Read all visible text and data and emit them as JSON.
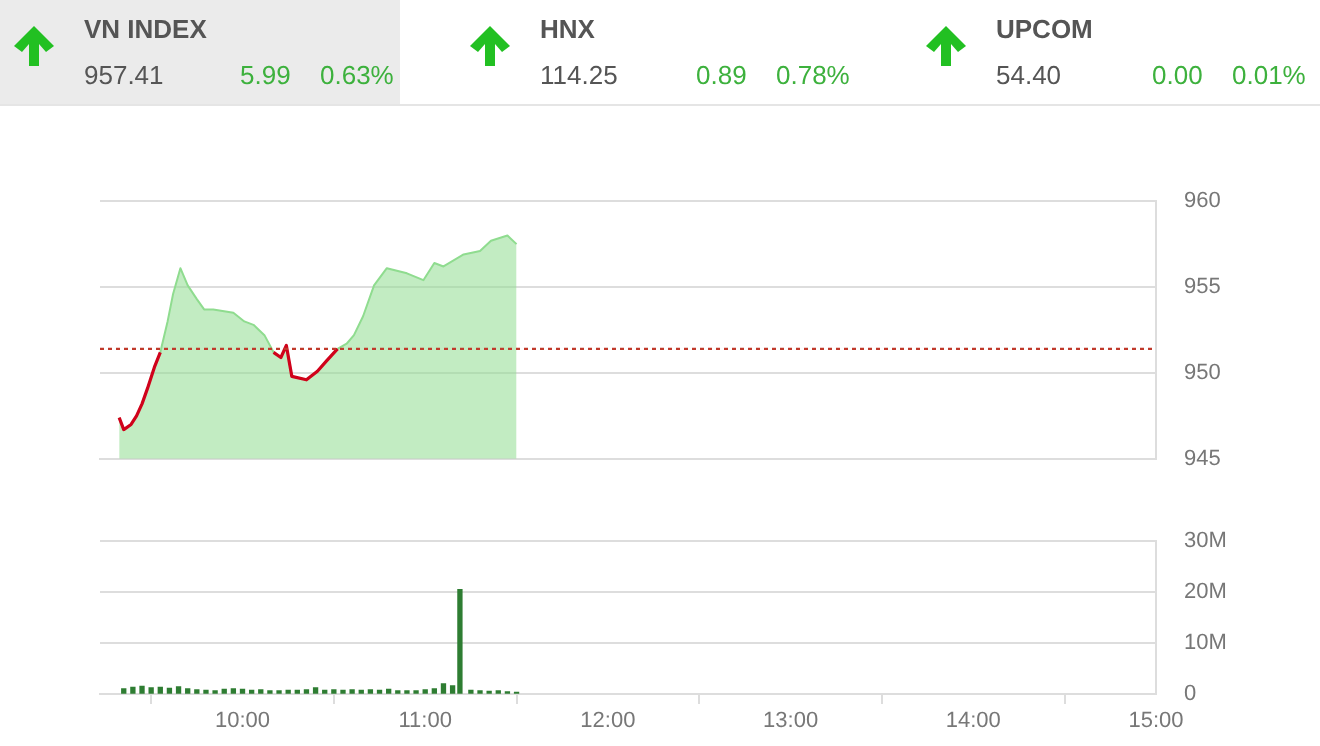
{
  "chart_data": [
    {
      "type": "other",
      "annotations": [
        "VN INDEX",
        "957.41",
        "5.99",
        "0.63%",
        "HNX",
        "114.25",
        "0.89",
        "0.78%",
        "UPCOM",
        "54.40",
        "0.00",
        "0.01%"
      ]
    },
    {
      "type": "area",
      "x": [
        9.325,
        9.35,
        9.39,
        9.42,
        9.45,
        9.48,
        9.52,
        9.55,
        9.59,
        9.62,
        9.66,
        9.7,
        9.75,
        9.79,
        9.84,
        9.95,
        10.01,
        10.06,
        10.12,
        10.17,
        10.21,
        10.24,
        10.27,
        10.35,
        10.41,
        10.46,
        10.52,
        10.57,
        10.61,
        10.66,
        10.72,
        10.79,
        10.9,
        10.99,
        11.05,
        11.1,
        11.21,
        11.3,
        11.36,
        11.45,
        11.5
      ],
      "series": [
        {
          "type": "area",
          "color": "#8fdc8f",
          "values": [
            947.4,
            946.7,
            947.0,
            947.5,
            948.2,
            949.1,
            950.4,
            951.2,
            953.0,
            954.6,
            956.1,
            955.1,
            954.3,
            953.7,
            953.7,
            953.5,
            953.0,
            952.8,
            952.2,
            951.2,
            950.9,
            951.6,
            949.8,
            949.6,
            950.1,
            950.7,
            951.4,
            951.7,
            952.2,
            953.3,
            955.1,
            956.1,
            955.8,
            955.4,
            956.4,
            956.2,
            956.9,
            957.1,
            957.7,
            958.0,
            957.5
          ]
        },
        {
          "type": "line",
          "color": "#d0021b",
          "values": [
            947.4,
            946.7,
            947.0,
            947.5,
            948.2,
            949.1,
            950.4,
            951.2,
            null,
            null,
            null,
            null,
            null,
            null,
            null,
            null,
            null,
            null,
            null,
            951.2,
            950.9,
            951.6,
            949.8,
            949.6,
            950.1,
            950.7,
            951.4,
            null,
            null,
            null,
            null,
            null,
            null,
            null,
            null,
            null,
            null,
            null,
            null,
            null,
            null
          ]
        }
      ],
      "xlim": [
        9.22,
        15
      ],
      "ylim": [
        945,
        960
      ],
      "yticks": [
        945,
        950,
        955,
        960
      ],
      "grid": "y",
      "tick_labels": "y",
      "ref_lines": [
        {
          "axis": "y",
          "value": 951.4,
          "color": "#c0392b",
          "line_style": "dotted"
        }
      ]
    },
    {
      "type": "bar",
      "color": "#2e7d32",
      "x": [
        9.35,
        9.4,
        9.45,
        9.5,
        9.55,
        9.6,
        9.65,
        9.7,
        9.75,
        9.8,
        9.85,
        9.9,
        9.95,
        10.0,
        10.05,
        10.1,
        10.15,
        10.2,
        10.25,
        10.3,
        10.35,
        10.4,
        10.45,
        10.5,
        10.55,
        10.6,
        10.65,
        10.7,
        10.75,
        10.8,
        10.85,
        10.9,
        10.95,
        11.0,
        11.05,
        11.1,
        11.15,
        11.19,
        11.25,
        11.3,
        11.35,
        11.4,
        11.45,
        11.5
      ],
      "values": [
        1000000,
        1300000,
        1500000,
        1200000,
        1300000,
        1100000,
        1400000,
        1000000,
        800000,
        700000,
        600000,
        900000,
        1000000,
        900000,
        700000,
        800000,
        600000,
        600000,
        700000,
        700000,
        800000,
        1200000,
        700000,
        800000,
        700000,
        800000,
        700000,
        800000,
        700000,
        900000,
        600000,
        600000,
        600000,
        800000,
        1000000,
        2000000,
        1600000,
        20500000,
        700000,
        600000,
        500000,
        600000,
        400000,
        300000
      ],
      "xlim": [
        9.22,
        15
      ],
      "xticks": [
        {
          "value": 10,
          "label": "10:00"
        },
        {
          "value": 11,
          "label": "11:00"
        },
        {
          "value": 12,
          "label": "12:00"
        },
        {
          "value": 13,
          "label": "13:00"
        },
        {
          "value": 14,
          "label": "14:00"
        },
        {
          "value": 15,
          "label": "15:00"
        }
      ],
      "ylim": [
        0,
        30000000
      ],
      "yticks": [
        0,
        {
          "value": 10000000,
          "label": "10M"
        },
        {
          "value": 20000000,
          "label": "20M"
        },
        {
          "value": 30000000,
          "label": "30M"
        }
      ],
      "grid": "y"
    }
  ]
}
